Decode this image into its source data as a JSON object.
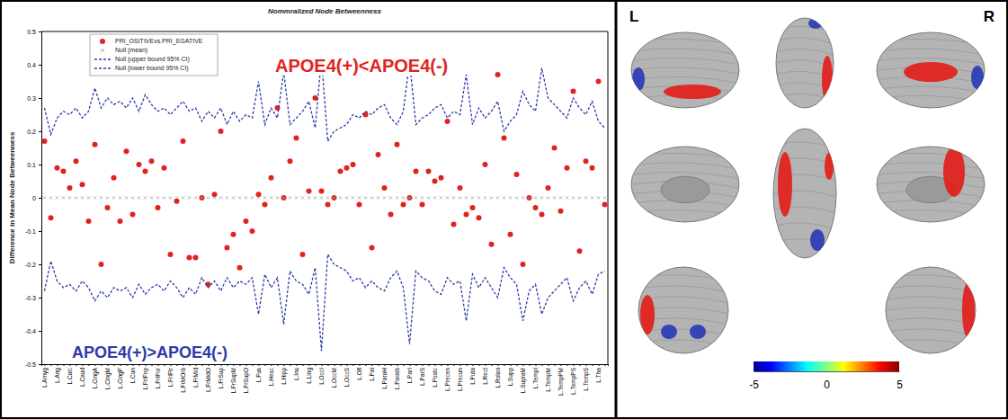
{
  "chart_data": [
    {
      "type": "line",
      "title": "Nommralized Node Betweenness",
      "y_label": "Difference in Mean Node Betweenness",
      "categories": [
        "L.Amyg",
        null,
        "L.Ang",
        null,
        "L.Calc",
        null,
        "L.Caud",
        null,
        "L.CingA",
        null,
        "L.CingM",
        null,
        "L.CingP",
        null,
        "L.Cun",
        null,
        "L.FrIFop",
        null,
        "L.FrIFor",
        null,
        "L.FrIFtr",
        null,
        "L.FrMOrb",
        null,
        "L.FrMid",
        null,
        "L.FrMidO",
        null,
        "L.FrSup",
        null,
        "L.FrSupM",
        null,
        "L.FrSupO",
        null,
        "L.Fus",
        null,
        "L.Hesc",
        null,
        "L.Hipp",
        null,
        "L.Ins",
        null,
        "L.Ling",
        null,
        "L.OccI",
        null,
        "L.OccM",
        null,
        "L.OccS",
        null,
        "L.Olf",
        null,
        "L.Pal",
        null,
        "L.ParaH",
        null,
        "L.Paralb",
        null,
        "L.ParI",
        null,
        "L.ParS",
        null,
        "L.Postc",
        null,
        "L.Precen",
        null,
        "L.Precun",
        null,
        "L.Puta",
        null,
        "L.Rect",
        null,
        "L.Rolan",
        null,
        "L.Supp",
        null,
        "L.SupraM",
        null,
        "L.TempI",
        null,
        "L.TempM",
        null,
        "L.TempPM",
        null,
        "L.TempPS",
        null,
        "L.TempS",
        null,
        "L.Tha",
        null
      ],
      "series": [
        {
          "name": "PRI_OSITIVEvs.PRI_EGATIVE",
          "type": "scatter",
          "marker": "circle",
          "color": "#e0231c",
          "values": [
            0.17,
            -0.06,
            0.09,
            0.08,
            0.03,
            0.11,
            0.04,
            -0.07,
            0.16,
            -0.2,
            -0.03,
            0.06,
            -0.07,
            0.14,
            -0.05,
            0.1,
            0.08,
            0.11,
            -0.03,
            0.09,
            -0.17,
            -0.01,
            0.17,
            -0.18,
            -0.18,
            0.0,
            -0.26,
            0.01,
            0.2,
            -0.15,
            -0.11,
            -0.21,
            -0.07,
            -0.1,
            0.01,
            -0.02,
            0.06,
            0.27,
            0.0,
            0.11,
            0.18,
            -0.17,
            0.02,
            0.3,
            0.02,
            -0.02,
            0.0,
            0.08,
            0.09,
            0.1,
            -0.02,
            0.25,
            -0.15,
            0.13,
            0.03,
            -0.05,
            0.16,
            -0.02,
            0.0,
            0.08,
            -0.02,
            0.08,
            0.05,
            0.06,
            0.23,
            -0.08,
            0.03,
            -0.05,
            -0.03,
            -0.06,
            0.1,
            -0.14,
            0.37,
            0.18,
            -0.11,
            0.07,
            -0.2,
            0.0,
            -0.03,
            -0.05,
            0.03,
            0.15,
            -0.04,
            0.09,
            0.32,
            -0.16,
            0.11,
            0.09,
            0.35,
            -0.02
          ]
        },
        {
          "name": "Null (mean)",
          "type": "scatter",
          "marker": "x",
          "color": "#a0a0a0",
          "values": [
            0,
            0,
            0,
            0,
            0,
            0,
            0,
            0,
            0,
            0,
            0,
            0,
            0,
            0,
            0,
            0,
            0,
            0,
            0,
            0,
            0,
            0,
            0,
            0,
            0,
            0,
            0,
            0,
            0,
            0,
            0,
            0,
            0,
            0,
            0,
            0,
            0,
            0,
            0,
            0,
            0,
            0,
            0,
            0,
            0,
            0,
            0,
            0,
            0,
            0,
            0,
            0,
            0,
            0,
            0,
            0,
            0,
            0,
            0,
            0,
            0,
            0,
            0,
            0,
            0,
            0,
            0,
            0,
            0,
            0,
            0,
            0,
            0,
            0,
            0,
            0,
            0,
            0,
            0,
            0,
            0,
            0,
            0,
            0,
            0,
            0,
            0,
            0,
            0,
            0
          ]
        },
        {
          "name": "Null (upper bound 95% CI)",
          "type": "line",
          "line_style": "dashed",
          "color": "#2b3aa8",
          "values": [
            0.27,
            0.19,
            0.24,
            0.26,
            0.25,
            0.27,
            0.24,
            0.26,
            0.33,
            0.27,
            0.3,
            0.28,
            0.29,
            0.27,
            0.3,
            0.26,
            0.31,
            0.28,
            0.26,
            0.27,
            0.25,
            0.27,
            0.29,
            0.26,
            0.27,
            0.23,
            0.26,
            0.24,
            0.27,
            0.22,
            0.26,
            0.23,
            0.25,
            0.24,
            0.35,
            0.22,
            0.27,
            0.24,
            0.38,
            0.22,
            0.24,
            0.26,
            0.29,
            0.21,
            0.42,
            0.17,
            0.2,
            0.21,
            0.22,
            0.25,
            0.24,
            0.26,
            0.25,
            0.27,
            0.28,
            0.24,
            0.22,
            0.26,
            0.41,
            0.22,
            0.24,
            0.25,
            0.27,
            0.28,
            0.24,
            0.26,
            0.25,
            0.37,
            0.22,
            0.27,
            0.24,
            0.26,
            0.29,
            0.2,
            0.23,
            0.25,
            0.32,
            0.28,
            0.26,
            0.39,
            0.3,
            0.28,
            0.26,
            0.24,
            0.3,
            0.27,
            0.25,
            0.29,
            0.23,
            0.21
          ]
        },
        {
          "name": "Null (lower bound 95% CI)",
          "type": "line",
          "line_style": "dashed",
          "color": "#2b3aa8",
          "values": [
            -0.28,
            -0.19,
            -0.25,
            -0.27,
            -0.26,
            -0.28,
            -0.25,
            -0.27,
            -0.31,
            -0.28,
            -0.3,
            -0.27,
            -0.28,
            -0.27,
            -0.3,
            -0.26,
            -0.29,
            -0.27,
            -0.26,
            -0.28,
            -0.25,
            -0.27,
            -0.3,
            -0.27,
            -0.29,
            -0.24,
            -0.27,
            -0.25,
            -0.28,
            -0.24,
            -0.27,
            -0.25,
            -0.26,
            -0.24,
            -0.35,
            -0.23,
            -0.27,
            -0.24,
            -0.38,
            -0.22,
            -0.25,
            -0.26,
            -0.29,
            -0.21,
            -0.46,
            -0.17,
            -0.2,
            -0.21,
            -0.22,
            -0.25,
            -0.24,
            -0.27,
            -0.25,
            -0.27,
            -0.28,
            -0.24,
            -0.22,
            -0.27,
            -0.44,
            -0.22,
            -0.24,
            -0.25,
            -0.28,
            -0.29,
            -0.24,
            -0.26,
            -0.25,
            -0.37,
            -0.23,
            -0.27,
            -0.24,
            -0.27,
            -0.3,
            -0.21,
            -0.24,
            -0.26,
            -0.37,
            -0.28,
            -0.26,
            -0.35,
            -0.3,
            -0.28,
            -0.26,
            -0.24,
            -0.31,
            -0.27,
            -0.25,
            -0.29,
            -0.23,
            -0.22
          ]
        }
      ],
      "ylim": [
        -0.5,
        0.5
      ],
      "yticks": [
        -0.5,
        -0.4,
        -0.3,
        -0.2,
        -0.1,
        0,
        0.1,
        0.2,
        0.3,
        0.4,
        0.5
      ],
      "legend": "upper left",
      "annotations": [
        {
          "text": "APOE4(+)<APOE4(-)",
          "color": "#e0231c"
        },
        {
          "text": "APOE4(+)>APOE4(-)",
          "color": "#2b3aa8"
        }
      ]
    },
    {
      "type": "brain_map",
      "labels": [
        "L",
        "R"
      ],
      "colorbar": {
        "range": [
          -5,
          5
        ],
        "ticks": [
          -5,
          0,
          5
        ]
      }
    }
  ]
}
